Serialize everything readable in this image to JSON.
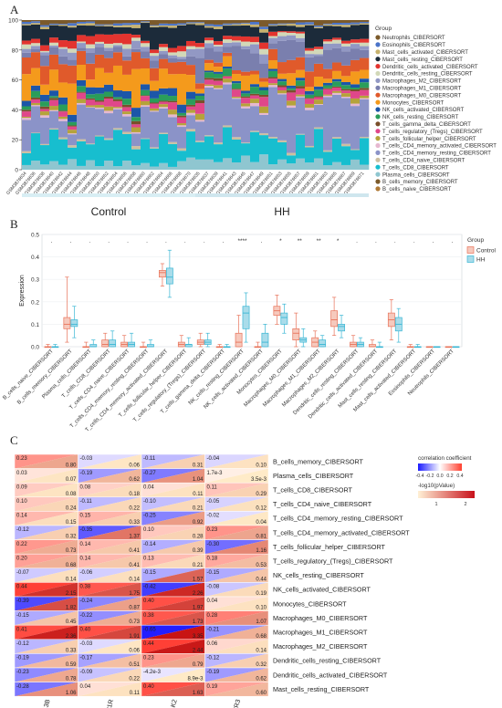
{
  "panel_labels": {
    "a": "A",
    "b": "B",
    "c": "C"
  },
  "chart_data": [
    {
      "type": "bar",
      "subtype": "stacked-100",
      "panel": "A",
      "ylim": [
        0,
        100
      ],
      "yticks": [
        0,
        20,
        40,
        60,
        80,
        100
      ],
      "xlabel": "",
      "ylabel": "",
      "legend_title": "Group",
      "legend_position": "right",
      "group_labels": [
        "Control",
        "HH"
      ],
      "samples_per_group": [
        19,
        19
      ],
      "categories": [
        "GSM3876634",
        "GSM3876636",
        "GSM3876638",
        "GSM3876640",
        "GSM3876642",
        "GSM3876644",
        "GSM3876646",
        "GSM3876648",
        "GSM3876650",
        "GSM3876652",
        "GSM3876654",
        "GSM3876656",
        "GSM3876658",
        "GSM3876660",
        "GSM3876662",
        "GSM3876664",
        "GSM3876666",
        "GSM3876668",
        "GSM3876670",
        "GSM3876635",
        "GSM3876637",
        "GSM3876639",
        "GSM3876641",
        "GSM3876643",
        "GSM3876645",
        "GSM3876647",
        "GSM3876649",
        "GSM3876651",
        "GSM3876653",
        "GSM3876655",
        "GSM3876657",
        "GSM3876659",
        "GSM3876661",
        "GSM3876663",
        "GSM3876665",
        "GSM3876667",
        "GSM3876669",
        "GSM3876671"
      ],
      "series": [
        {
          "name": "Neutrophils_CIBERSORT",
          "color": "#7b5a2b"
        },
        {
          "name": "Eosinophils_CIBERSORT",
          "color": "#4b74c8"
        },
        {
          "name": "Mast_cells_activated_CIBERSORT",
          "color": "#c7b26e"
        },
        {
          "name": "Mast_cells_resting_CIBERSORT",
          "color": "#1c2b3a"
        },
        {
          "name": "Dendritic_cells_activated_CIBERSORT",
          "color": "#e3342f"
        },
        {
          "name": "Dendritic_cells_resting_CIBERSORT",
          "color": "#d2d8b8"
        },
        {
          "name": "Macrophages_M2_CIBERSORT",
          "color": "#9298c4"
        },
        {
          "name": "Macrophages_M1_CIBERSORT",
          "color": "#7a7fae"
        },
        {
          "name": "Macrophages_M0_CIBERSORT",
          "color": "#e05a2b"
        },
        {
          "name": "Monocytes_CIBERSORT",
          "color": "#f49a1c"
        },
        {
          "name": "NK_cells_activated_CIBERSORT",
          "color": "#1c56a8"
        },
        {
          "name": "NK_cells_resting_CIBERSORT",
          "color": "#2a9d5a"
        },
        {
          "name": "T_cells_gamma_delta_CIBERSORT",
          "color": "#7a4f2a"
        },
        {
          "name": "T_cells_regulatory_(Tregs)_CIBERSORT",
          "color": "#e0478a"
        },
        {
          "name": "T_cells_follicular_helper_CIBERSORT",
          "color": "#b5a33a"
        },
        {
          "name": "T_cells_CD4_memory_activated_CIBERSORT",
          "color": "#e6b8d0"
        },
        {
          "name": "T_cells_CD4_memory_resting_CIBERSORT",
          "color": "#8b93c8"
        },
        {
          "name": "T_cells_CD4_naive_CIBERSORT",
          "color": "#cdbfa0"
        },
        {
          "name": "T_cells_CD8_CIBERSORT",
          "color": "#17becf"
        },
        {
          "name": "Plasma_cells_CIBERSORT",
          "color": "#8fc6d0"
        },
        {
          "name": "B_cells_memory_CIBERSORT",
          "color": "#7b5a2b"
        },
        {
          "name": "B_cells_naive_CIBERSORT",
          "color": "#b07a36"
        }
      ],
      "group_mean_fractions": {
        "Control": [
          2,
          1,
          1,
          9,
          4,
          2,
          3,
          4,
          12,
          12,
          3,
          3,
          1,
          3,
          2,
          1,
          17,
          1,
          15,
          5,
          0,
          0
        ],
        "HH": [
          2,
          1,
          1,
          7,
          2,
          2,
          3,
          10,
          5,
          5,
          3,
          3,
          1,
          3,
          2,
          1,
          25,
          1,
          13,
          5,
          0,
          0
        ]
      }
    },
    {
      "type": "box",
      "panel": "B",
      "ylabel": "Expression",
      "xlabel": "",
      "ylim": [
        0,
        0.5
      ],
      "yticks": [
        0.0,
        0.1,
        0.2,
        0.3,
        0.4,
        0.5
      ],
      "legend_title": "Group",
      "legend_position": "right",
      "series": [
        {
          "name": "Control",
          "color": "#e8735a"
        },
        {
          "name": "HH",
          "color": "#39b6d4"
        }
      ],
      "categories": [
        "B_cells_naive_CIBERSORT",
        "B_cells_memory_CIBERSORT",
        "Plasma_cells_CIBERSORT",
        "T_cells_CD8_CIBERSORT",
        "T_cells_CD4_naive_CIBERSORT",
        "T_cells_CD4_memory_resting_CIBERSORT",
        "T_cells_CD4_memory_activated_CIBERSORT",
        "T_cells_follicular_helper_CIBERSORT",
        "T_cells_regulatory_(Tregs)_CIBERSORT",
        "T_cells_gamma_delta_CIBERSORT",
        "NK_cells_resting_CIBERSORT",
        "NK_cells_activated_CIBERSORT",
        "Monocytes_CIBERSORT",
        "Macrophages_M0_CIBERSORT",
        "Macrophages_M1_CIBERSORT",
        "Macrophages_M2_CIBERSORT",
        "Dendritic_cells_resting_CIBERSORT",
        "Dendritic_cells_activated_CIBERSORT",
        "Mast_cells_resting_CIBERSORT",
        "Mast_cells_activated_CIBERSORT",
        "Eosinophils_CIBERSORT",
        "Neutrophils_CIBERSORT"
      ],
      "significance": [
        ".",
        ".",
        ".",
        ".",
        ".",
        ".",
        ".",
        ".",
        ".",
        ".",
        "****",
        ".",
        "*",
        "**",
        "**",
        "*",
        ".",
        ".",
        ".",
        ".",
        ".",
        "."
      ],
      "boxes": {
        "Control": [
          [
            0,
            0,
            0,
            0,
            0.01
          ],
          [
            0.02,
            0.08,
            0.1,
            0.13,
            0.31
          ],
          [
            0,
            0,
            0,
            0,
            0.02
          ],
          [
            0,
            0,
            0.01,
            0.03,
            0.06
          ],
          [
            0,
            0,
            0.01,
            0.02,
            0.05
          ],
          [
            0,
            0,
            0,
            0,
            0.02
          ],
          [
            0.27,
            0.31,
            0.33,
            0.34,
            0.37
          ],
          [
            0,
            0,
            0.01,
            0.02,
            0.05
          ],
          [
            0,
            0.01,
            0.02,
            0.03,
            0.06
          ],
          [
            0,
            0,
            0,
            0,
            0.01
          ],
          [
            0,
            0,
            0.02,
            0.06,
            0.14
          ],
          [
            0,
            0,
            0,
            0,
            0.02
          ],
          [
            0.1,
            0.14,
            0.16,
            0.18,
            0.23
          ],
          [
            0,
            0.03,
            0.06,
            0.08,
            0.15
          ],
          [
            0,
            0,
            0.02,
            0.04,
            0.07
          ],
          [
            0.05,
            0.09,
            0.12,
            0.16,
            0.22
          ],
          [
            0,
            0,
            0.01,
            0.02,
            0.05
          ],
          [
            0,
            0,
            0,
            0.01,
            0.03
          ],
          [
            0.03,
            0.09,
            0.12,
            0.15,
            0.21
          ],
          [
            0,
            0,
            0,
            0,
            0.01
          ],
          [
            0,
            0,
            0,
            0,
            0
          ],
          [
            0,
            0,
            0,
            0,
            0
          ]
        ],
        "HH": [
          [
            0,
            0,
            0,
            0,
            0.01
          ],
          [
            0.04,
            0.09,
            0.1,
            0.12,
            0.18
          ],
          [
            0,
            0,
            0,
            0.01,
            0.03
          ],
          [
            0,
            0,
            0.01,
            0.03,
            0.07
          ],
          [
            0,
            0,
            0.01,
            0.02,
            0.06
          ],
          [
            0,
            0,
            0,
            0.01,
            0.03
          ],
          [
            0.22,
            0.28,
            0.31,
            0.35,
            0.43
          ],
          [
            0,
            0,
            0.01,
            0.01,
            0.04
          ],
          [
            0,
            0.01,
            0.02,
            0.03,
            0.06
          ],
          [
            0,
            0,
            0,
            0,
            0.01
          ],
          [
            0.02,
            0.08,
            0.15,
            0.18,
            0.24
          ],
          [
            0,
            0,
            0.02,
            0.06,
            0.1
          ],
          [
            0.06,
            0.1,
            0.13,
            0.15,
            0.19
          ],
          [
            0,
            0.02,
            0.03,
            0.04,
            0.08
          ],
          [
            0,
            0,
            0.01,
            0.03,
            0.05
          ],
          [
            0.04,
            0.07,
            0.09,
            0.1,
            0.14
          ],
          [
            0,
            0,
            0.01,
            0.02,
            0.04
          ],
          [
            0,
            0,
            0,
            0,
            0.02
          ],
          [
            0.02,
            0.07,
            0.1,
            0.13,
            0.17
          ],
          [
            0,
            0,
            0,
            0,
            0.01
          ],
          [
            0,
            0,
            0,
            0,
            0
          ],
          [
            0,
            0,
            0,
            0,
            0
          ]
        ]
      }
    },
    {
      "type": "heatmap",
      "panel": "C",
      "x": [
        "TNFSF13B",
        "IL21R",
        "JAK2",
        "CXCR3"
      ],
      "y": [
        "B_cells_memory_CIBERSORT",
        "Plasma_cells_CIBERSORT",
        "T_cells_CD8_CIBERSORT",
        "T_cells_CD4_naive_CIBERSORT",
        "T_cells_CD4_memory_resting_CIBERSORT",
        "T_cells_CD4_memory_activated_CIBERSORT",
        "T_cells_follicular_helper_CIBERSORT",
        "T_cells_regulatory_(Tregs)_CIBERSORT",
        "NK_cells_resting_CIBERSORT",
        "NK_cells_activated_CIBERSORT",
        "Monocytes_CIBERSORT",
        "Macrophages_M0_CIBERSORT",
        "Macrophages_M1_CIBERSORT",
        "Macrophages_M2_CIBERSORT",
        "Dendritic_cells_resting_CIBERSORT",
        "Dendritic_cells_activated_CIBERSORT",
        "Mast_cells_resting_CIBERSORT"
      ],
      "legend_title_corr": "correlation coefficient",
      "legend_ticks_corr": [
        "-0.4",
        "-0.2",
        "0.0",
        "0.2",
        "0.4"
      ],
      "legend_title_p": "-log10(pValue)",
      "legend_ticks_p": [
        "1",
        "2"
      ],
      "corr_labels": [
        [
          "0.23",
          "-0.03",
          "-0.11",
          "-0.04"
        ],
        [
          "0.03",
          "-0.19",
          "-0.27",
          "1.7e-3"
        ],
        [
          "0.09",
          "0.08",
          "0.04",
          "0.11"
        ],
        [
          "0.10",
          "-0.11",
          "-0.10",
          "-0.05"
        ],
        [
          "0.14",
          "0.15",
          "-0.25",
          "-0.02"
        ],
        [
          "-0.12",
          "-0.35",
          "0.10",
          "0.23"
        ],
        [
          "0.22",
          "0.14",
          "-0.14",
          "-0.30"
        ],
        [
          "0.20",
          "0.14",
          "0.13",
          "0.18"
        ],
        [
          "-0.07",
          "-0.06",
          "-0.15",
          "-0.15"
        ],
        [
          "0.44",
          "0.38",
          "-0.42",
          "-0.08"
        ],
        [
          "-0.39",
          "-0.24",
          "0.40",
          "0.04"
        ],
        [
          "-0.15",
          "-0.22",
          "0.38",
          "0.28"
        ],
        [
          "0.41",
          "0.40",
          "-0.65",
          "-0.21"
        ],
        [
          "-0.12",
          "-0.03",
          "0.44",
          "0.06"
        ],
        [
          "-0.19",
          "-0.17",
          "0.23",
          "-0.12"
        ],
        [
          "-0.23",
          "-0.09",
          "-4.2e-3",
          "-0.19"
        ],
        [
          "-0.28",
          "0.04",
          "0.40",
          "0.19"
        ]
      ],
      "corr_values": [
        [
          0.23,
          -0.03,
          -0.11,
          -0.04
        ],
        [
          0.03,
          -0.19,
          -0.27,
          0.0017
        ],
        [
          0.09,
          0.08,
          0.04,
          0.11
        ],
        [
          0.1,
          -0.11,
          -0.1,
          -0.05
        ],
        [
          0.14,
          0.15,
          -0.25,
          -0.02
        ],
        [
          -0.12,
          -0.35,
          0.1,
          0.23
        ],
        [
          0.22,
          0.14,
          -0.14,
          -0.3
        ],
        [
          0.2,
          0.14,
          0.13,
          0.18
        ],
        [
          -0.07,
          -0.06,
          -0.15,
          -0.15
        ],
        [
          0.44,
          0.38,
          -0.42,
          -0.08
        ],
        [
          -0.39,
          -0.24,
          0.4,
          0.04
        ],
        [
          -0.15,
          -0.22,
          0.38,
          0.28
        ],
        [
          0.41,
          0.4,
          -0.65,
          -0.21
        ],
        [
          -0.12,
          -0.03,
          0.44,
          0.06
        ],
        [
          -0.19,
          -0.17,
          0.23,
          -0.12
        ],
        [
          -0.23,
          -0.09,
          -0.0042,
          -0.19
        ],
        [
          -0.28,
          0.04,
          0.4,
          0.19
        ]
      ],
      "p_labels": [
        [
          "0.80",
          "0.06",
          "0.31",
          "0.10"
        ],
        [
          "0.07",
          "0.62",
          "1.04",
          "3.5e-3"
        ],
        [
          "0.08",
          "0.18",
          "0.11",
          "0.29"
        ],
        [
          "0.24",
          "0.22",
          "0.21",
          "0.12"
        ],
        [
          "0.15",
          "0.33",
          "0.92",
          "0.04"
        ],
        [
          "0.32",
          "1.37",
          "0.28",
          "0.81"
        ],
        [
          "0.73",
          "0.41",
          "0.39",
          "1.16"
        ],
        [
          "0.68",
          "0.41",
          "0.21",
          "0.53"
        ],
        [
          "0.14",
          "0.14",
          "1.57",
          "0.44"
        ],
        [
          "2.15",
          "1.75",
          "2.26",
          "0.19"
        ],
        [
          "1.82",
          "0.87",
          "1.97",
          "0.10"
        ],
        [
          "0.45",
          "0.73",
          "1.73",
          "1.07"
        ],
        [
          "2.36",
          "1.91",
          "3.35",
          "0.68"
        ],
        [
          "0.33",
          "0.06",
          "2.44",
          "0.14"
        ],
        [
          "0.59",
          "0.51",
          "0.79",
          "0.32"
        ],
        [
          "0.78",
          "0.22",
          "8.9e-3",
          "0.62"
        ],
        [
          "1.06",
          "0.11",
          "1.63",
          "0.60"
        ]
      ],
      "p_values": [
        [
          0.8,
          0.06,
          0.31,
          0.1
        ],
        [
          0.07,
          0.62,
          1.04,
          0.0035
        ],
        [
          0.08,
          0.18,
          0.11,
          0.29
        ],
        [
          0.24,
          0.22,
          0.21,
          0.12
        ],
        [
          0.15,
          0.33,
          0.92,
          0.04
        ],
        [
          0.32,
          1.37,
          0.28,
          0.81
        ],
        [
          0.73,
          0.41,
          0.39,
          1.16
        ],
        [
          0.68,
          0.41,
          0.21,
          0.53
        ],
        [
          0.14,
          0.14,
          1.57,
          0.44
        ],
        [
          2.15,
          1.75,
          2.26,
          0.19
        ],
        [
          1.82,
          0.87,
          1.97,
          0.1
        ],
        [
          0.45,
          0.73,
          1.73,
          1.07
        ],
        [
          2.36,
          1.91,
          3.35,
          0.68
        ],
        [
          0.33,
          0.06,
          2.44,
          0.14
        ],
        [
          0.59,
          0.51,
          0.79,
          0.32
        ],
        [
          0.78,
          0.22,
          0.0089,
          0.62
        ],
        [
          1.06,
          0.11,
          1.63,
          0.6
        ]
      ]
    }
  ]
}
